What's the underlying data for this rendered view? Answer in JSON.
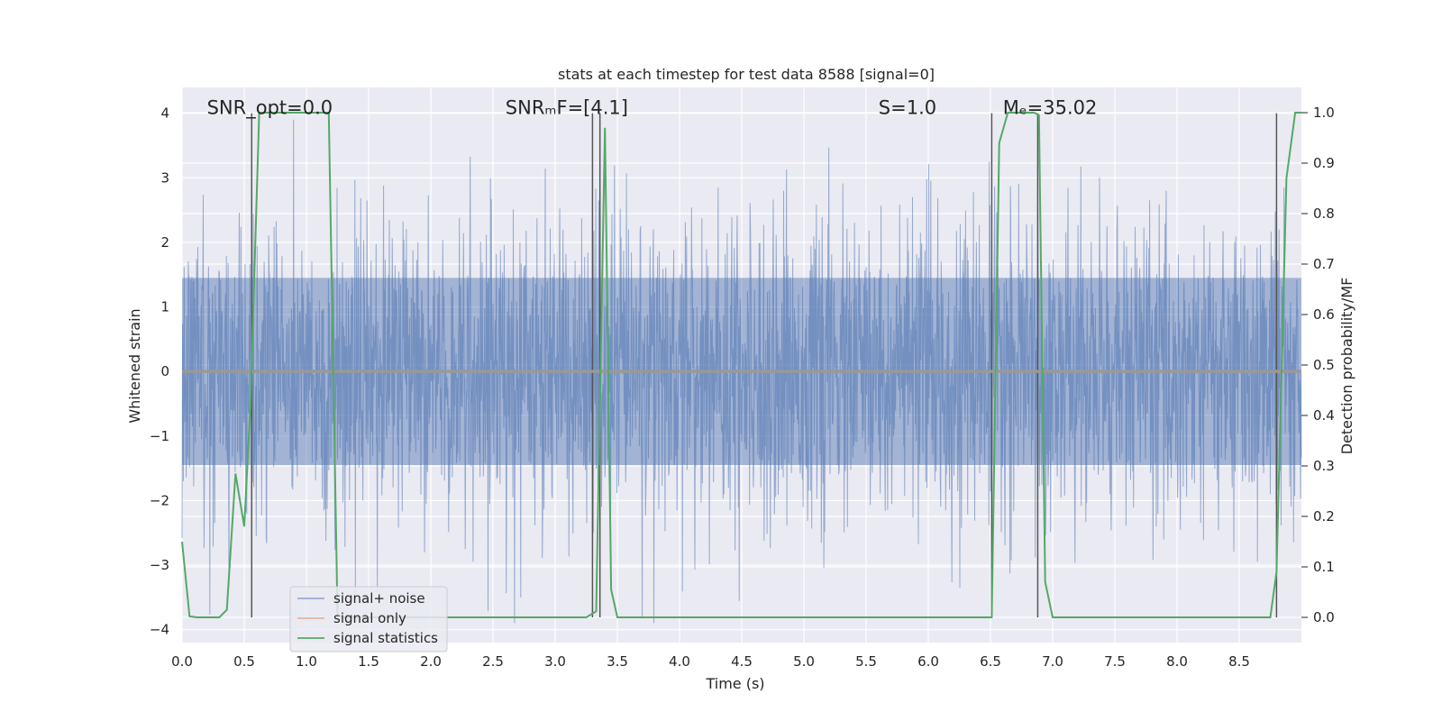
{
  "chart_data": {
    "type": "line",
    "title": "stats at each timestep for test data 8588 [signal=0]",
    "xlabel": "Time (s)",
    "ylabel_left": "Whitened strain",
    "ylabel_right": "Detection probability/MF",
    "xlim": [
      0.0,
      9.0
    ],
    "ylim_left": [
      -4.2,
      4.4
    ],
    "ylim_right": [
      -0.05,
      1.05
    ],
    "x_ticks": [
      "0.0",
      "0.5",
      "1.0",
      "1.5",
      "2.0",
      "2.5",
      "3.0",
      "3.5",
      "4.0",
      "4.5",
      "5.0",
      "5.5",
      "6.0",
      "6.5",
      "7.0",
      "7.5",
      "8.0",
      "8.5"
    ],
    "x_tick_values": [
      0.0,
      0.5,
      1.0,
      1.5,
      2.0,
      2.5,
      3.0,
      3.5,
      4.0,
      4.5,
      5.0,
      5.5,
      6.0,
      6.5,
      7.0,
      7.5,
      8.0,
      8.5
    ],
    "y_left_ticks": [
      "4",
      "3",
      "2",
      "1",
      "0",
      "−1",
      "−2",
      "−3",
      "−4"
    ],
    "y_left_tick_values": [
      4,
      3,
      2,
      1,
      0,
      -1,
      -2,
      -3,
      -4
    ],
    "y_right_ticks": [
      "1.0",
      "0.9",
      "0.8",
      "0.7",
      "0.6",
      "0.5",
      "0.4",
      "0.3",
      "0.2",
      "0.1",
      "0.0"
    ],
    "y_right_tick_values": [
      1.0,
      0.9,
      0.8,
      0.7,
      0.6,
      0.5,
      0.4,
      0.3,
      0.2,
      0.1,
      0.0
    ],
    "grid": true,
    "legend_position": "lower-left",
    "annotations": [
      {
        "text": "SNR_opt=0.0",
        "x": 0.2,
        "y": 4.0
      },
      {
        "text": "SNRₘF=[4.1]",
        "x": 2.6,
        "y": 4.0
      },
      {
        "text": "S=1.0",
        "x": 5.6,
        "y": 4.0
      },
      {
        "text": "Mₑ=35.02",
        "x": 6.6,
        "y": 4.0
      }
    ],
    "series": [
      {
        "name": "signal+ noise",
        "color": "#4c72b0",
        "kind": "noise",
        "amplitude_core": 1.0,
        "amplitude_peak": 3.9,
        "samples_per_second": 300
      },
      {
        "name": "signal only",
        "color": "#dd8452",
        "kind": "line",
        "x": [
          0.0,
          9.0
        ],
        "y": [
          0.0,
          0.0
        ]
      },
      {
        "name": "signal statistics",
        "color": "#55a868",
        "axis": "right",
        "x": [
          0.0,
          0.06,
          0.12,
          0.2,
          0.3,
          0.36,
          0.43,
          0.5,
          0.55,
          0.62,
          0.68,
          0.8,
          1.1,
          1.18,
          1.25,
          1.3,
          2.0,
          3.0,
          3.25,
          3.33,
          3.4,
          3.45,
          3.5,
          3.6,
          4.5,
          5.5,
          6.51,
          6.57,
          6.64,
          6.7,
          6.85,
          6.89,
          6.94,
          7.0,
          7.5,
          8.0,
          8.75,
          8.8,
          8.88,
          8.95,
          9.0
        ],
        "y": [
          0.15,
          0.002,
          0.0,
          0.0,
          0.0,
          0.015,
          0.285,
          0.18,
          0.42,
          1.0,
          1.0,
          1.0,
          1.0,
          1.0,
          0.005,
          0.0,
          0.0,
          0.0,
          0.0,
          0.012,
          0.97,
          0.055,
          0.0,
          0.0,
          0.0,
          0.0,
          0.0,
          0.94,
          1.0,
          1.0,
          1.0,
          0.995,
          0.07,
          0.0,
          0.0,
          0.0,
          0.0,
          0.09,
          0.87,
          1.0,
          1.0
        ]
      }
    ],
    "vertical_lines": [
      0.56,
      3.3,
      3.36,
      6.51,
      6.88,
      8.8
    ],
    "vertical_line_color": "#555555"
  }
}
